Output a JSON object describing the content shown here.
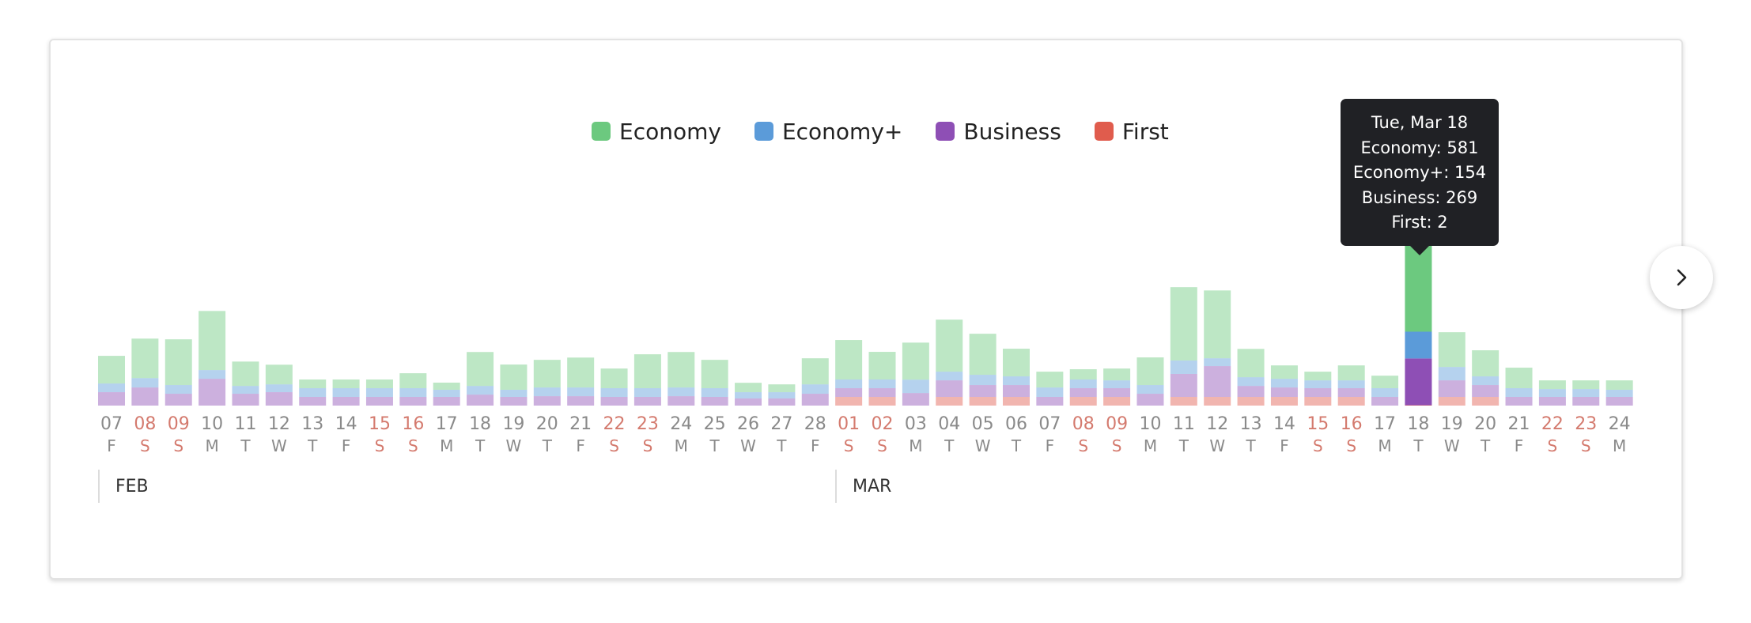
{
  "legend": {
    "items": [
      {
        "label": "Economy",
        "color": "#6cc97f"
      },
      {
        "label": "Economy+",
        "color": "#5b9bd9"
      },
      {
        "label": "Business",
        "color": "#8e4fb5"
      },
      {
        "label": "First",
        "color": "#e05c4d"
      }
    ]
  },
  "tooltip": {
    "date": "Tue, Mar 18",
    "economy": "Economy: 581",
    "economy_plus": "Economy+: 154",
    "business": "Business: 269",
    "first": "First: 2"
  },
  "months": [
    {
      "label": "FEB"
    },
    {
      "label": "MAR"
    }
  ],
  "next_button": {
    "icon": "chevron-right-icon"
  },
  "chart_data": {
    "type": "bar",
    "stacked": true,
    "highlighted_index": 39,
    "categories": [
      {
        "day": "07",
        "weekday": "F",
        "weekend": false
      },
      {
        "day": "08",
        "weekday": "S",
        "weekend": true
      },
      {
        "day": "09",
        "weekday": "S",
        "weekend": true
      },
      {
        "day": "10",
        "weekday": "M",
        "weekend": false
      },
      {
        "day": "11",
        "weekday": "T",
        "weekend": false
      },
      {
        "day": "12",
        "weekday": "W",
        "weekend": false
      },
      {
        "day": "13",
        "weekday": "T",
        "weekend": false
      },
      {
        "day": "14",
        "weekday": "F",
        "weekend": false
      },
      {
        "day": "15",
        "weekday": "S",
        "weekend": true
      },
      {
        "day": "16",
        "weekday": "S",
        "weekend": true
      },
      {
        "day": "17",
        "weekday": "M",
        "weekend": false
      },
      {
        "day": "18",
        "weekday": "T",
        "weekend": false
      },
      {
        "day": "19",
        "weekday": "W",
        "weekend": false
      },
      {
        "day": "20",
        "weekday": "T",
        "weekend": false
      },
      {
        "day": "21",
        "weekday": "F",
        "weekend": false
      },
      {
        "day": "22",
        "weekday": "S",
        "weekend": true
      },
      {
        "day": "23",
        "weekday": "S",
        "weekend": true
      },
      {
        "day": "24",
        "weekday": "M",
        "weekend": false
      },
      {
        "day": "25",
        "weekday": "T",
        "weekend": false
      },
      {
        "day": "26",
        "weekday": "W",
        "weekend": false
      },
      {
        "day": "27",
        "weekday": "T",
        "weekend": false
      },
      {
        "day": "28",
        "weekday": "F",
        "weekend": false
      },
      {
        "day": "01",
        "weekday": "S",
        "weekend": true
      },
      {
        "day": "02",
        "weekday": "S",
        "weekend": true
      },
      {
        "day": "03",
        "weekday": "M",
        "weekend": false
      },
      {
        "day": "04",
        "weekday": "T",
        "weekend": false
      },
      {
        "day": "05",
        "weekday": "W",
        "weekend": false
      },
      {
        "day": "06",
        "weekday": "T",
        "weekend": false
      },
      {
        "day": "07",
        "weekday": "F",
        "weekend": false
      },
      {
        "day": "08",
        "weekday": "S",
        "weekend": true
      },
      {
        "day": "09",
        "weekday": "S",
        "weekend": true
      },
      {
        "day": "10",
        "weekday": "M",
        "weekend": false
      },
      {
        "day": "11",
        "weekday": "T",
        "weekend": false
      },
      {
        "day": "12",
        "weekday": "W",
        "weekend": false
      },
      {
        "day": "13",
        "weekday": "T",
        "weekend": false
      },
      {
        "day": "14",
        "weekday": "F",
        "weekend": false
      },
      {
        "day": "15",
        "weekday": "S",
        "weekend": true
      },
      {
        "day": "16",
        "weekday": "S",
        "weekend": true
      },
      {
        "day": "17",
        "weekday": "M",
        "weekend": false
      },
      {
        "day": "18",
        "weekday": "T",
        "weekend": false
      },
      {
        "day": "19",
        "weekday": "W",
        "weekend": false
      },
      {
        "day": "20",
        "weekday": "T",
        "weekend": false
      },
      {
        "day": "21",
        "weekday": "F",
        "weekend": false
      },
      {
        "day": "22",
        "weekday": "S",
        "weekend": true
      },
      {
        "day": "23",
        "weekday": "S",
        "weekend": true
      },
      {
        "day": "24",
        "weekday": "M",
        "weekend": false
      }
    ],
    "series": [
      {
        "name": "First",
        "color": "#e05c4d",
        "values": [
          0,
          0,
          0,
          0,
          0,
          0,
          0,
          0,
          0,
          0,
          0,
          0,
          0,
          0,
          0,
          0,
          0,
          0,
          0,
          0,
          0,
          0,
          50,
          50,
          0,
          50,
          50,
          50,
          0,
          50,
          50,
          0,
          50,
          50,
          50,
          50,
          50,
          50,
          0,
          2,
          50,
          50,
          0,
          0,
          0,
          0
        ]
      },
      {
        "name": "Business",
        "color": "#8e4fb5",
        "values": [
          77,
          104,
          68,
          154,
          68,
          77,
          50,
          50,
          50,
          50,
          50,
          63,
          50,
          54,
          54,
          50,
          50,
          54,
          50,
          41,
          41,
          68,
          50,
          50,
          72,
          95,
          68,
          68,
          50,
          50,
          50,
          68,
          132,
          177,
          63,
          54,
          50,
          50,
          50,
          269,
          95,
          68,
          50,
          50,
          50,
          50
        ]
      },
      {
        "name": "Economy+",
        "color": "#5b9bd9",
        "values": [
          50,
          54,
          50,
          50,
          45,
          45,
          50,
          50,
          50,
          50,
          41,
          50,
          41,
          50,
          50,
          50,
          50,
          50,
          50,
          36,
          36,
          54,
          50,
          50,
          77,
          50,
          59,
          50,
          54,
          50,
          45,
          50,
          77,
          45,
          50,
          50,
          45,
          45,
          50,
          154,
          77,
          50,
          50,
          45,
          45,
          41
        ]
      },
      {
        "name": "Economy",
        "color": "#6cc97f",
        "values": [
          159,
          227,
          263,
          340,
          140,
          113,
          50,
          50,
          50,
          86,
          41,
          195,
          145,
          159,
          172,
          113,
          195,
          204,
          163,
          54,
          45,
          150,
          227,
          159,
          213,
          299,
          236,
          159,
          91,
          59,
          68,
          159,
          422,
          390,
          163,
          77,
          50,
          86,
          72,
          581,
          200,
          150,
          118,
          50,
          50,
          54
        ]
      }
    ]
  }
}
